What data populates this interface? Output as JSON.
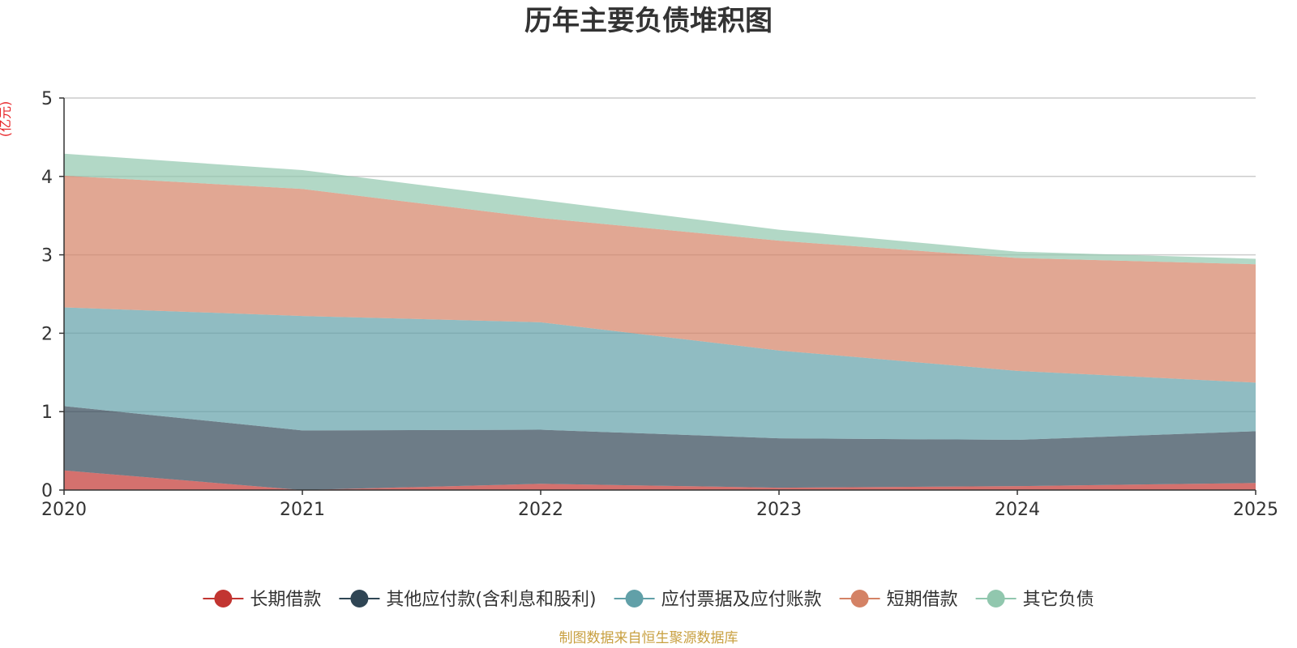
{
  "chart_data": {
    "type": "area",
    "stacked": true,
    "title": "历年主要负债堆积图",
    "ylabel": "(亿元)",
    "xlabel": "",
    "ylim": [
      0,
      5
    ],
    "yticks": [
      0,
      1,
      2,
      3,
      4,
      5
    ],
    "x": [
      "2020",
      "2021",
      "2022",
      "2023",
      "2024",
      "2025"
    ],
    "grid": true,
    "legend_position": "bottom",
    "series": [
      {
        "name": "长期借款",
        "color": "#c23531",
        "values": [
          0.25,
          0.0,
          0.08,
          0.03,
          0.05,
          0.09
        ]
      },
      {
        "name": "其他应付款(含利息和股利)",
        "color": "#2f4554",
        "values": [
          0.82,
          0.76,
          0.69,
          0.63,
          0.59,
          0.66
        ]
      },
      {
        "name": "应付票据及应付账款",
        "color": "#61a0a8",
        "values": [
          1.26,
          1.46,
          1.37,
          1.12,
          0.88,
          0.62
        ]
      },
      {
        "name": "短期借款",
        "color": "#d48265",
        "values": [
          1.68,
          1.62,
          1.33,
          1.4,
          1.44,
          1.51
        ]
      },
      {
        "name": "其它负债",
        "color": "#91c7ae",
        "values": [
          0.28,
          0.24,
          0.23,
          0.14,
          0.08,
          0.07
        ]
      }
    ]
  },
  "footer": {
    "source": "制图数据来自恒生聚源数据库"
  }
}
